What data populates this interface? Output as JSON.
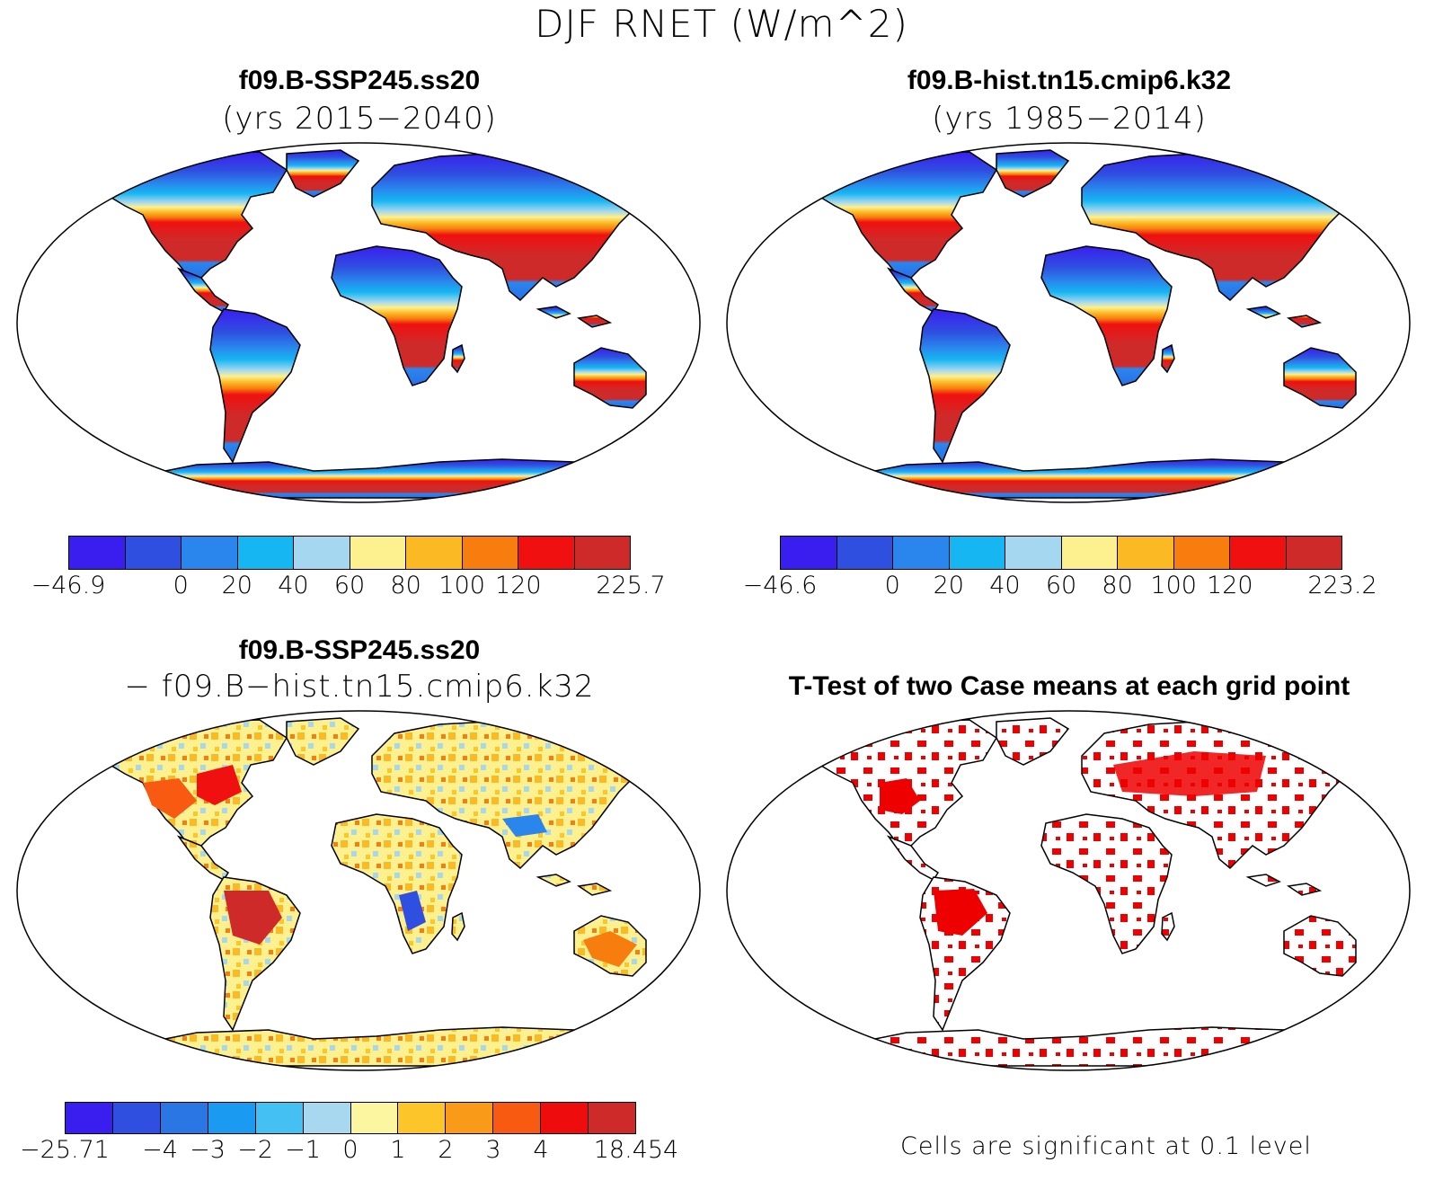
{
  "figure": {
    "title": "DJF RNET (W/m^2)"
  },
  "panels": {
    "top_left": {
      "title": "f09.B-SSP245.ss20",
      "subtitle": "(yrs 2015−2040)",
      "colorbar": {
        "colors": [
          "#3a1ef0",
          "#2f4fe0",
          "#2a86ec",
          "#16b6f2",
          "#a5d8f0",
          "#fdf08e",
          "#fbb923",
          "#f77d0e",
          "#f01010",
          "#cf2a2a"
        ],
        "labels": [
          "−46.9",
          "0",
          "20",
          "40",
          "60",
          "80",
          "100",
          "120",
          "225.7"
        ],
        "edges": [
          0,
          2,
          3,
          4,
          5,
          6,
          7,
          8,
          10
        ]
      }
    },
    "top_right": {
      "title": "f09.B-hist.tn15.cmip6.k32",
      "subtitle": "(yrs 1985−2014)",
      "colorbar": {
        "colors": [
          "#3a1ef0",
          "#2f4fe0",
          "#2a86ec",
          "#16b6f2",
          "#a5d8f0",
          "#fdf08e",
          "#fbb923",
          "#f77d0e",
          "#f01010",
          "#cf2a2a"
        ],
        "labels": [
          "−46.6",
          "0",
          "20",
          "40",
          "60",
          "80",
          "100",
          "120",
          "223.2"
        ],
        "edges": [
          0,
          2,
          3,
          4,
          5,
          6,
          7,
          8,
          10
        ]
      }
    },
    "bottom_left": {
      "title": "f09.B-SSP245.ss20",
      "subtitle": "− f09.B−hist.tn15.cmip6.k32",
      "colorbar": {
        "colors": [
          "#3a1ef0",
          "#2f4fe0",
          "#2a76e4",
          "#1a9af0",
          "#44c0f2",
          "#a8d8f0",
          "#fdf6a0",
          "#fcc52a",
          "#f99a18",
          "#f75a10",
          "#ef0c0c",
          "#cf2a2a"
        ],
        "labels": [
          "−25.71",
          "−4",
          "−3",
          "−2",
          "−1",
          "0",
          "1",
          "2",
          "3",
          "4",
          "18.454"
        ],
        "edges": [
          0,
          2,
          3,
          4,
          5,
          6,
          7,
          8,
          9,
          10,
          12
        ]
      }
    },
    "bottom_right": {
      "title": "T-Test of two Case means at each grid point",
      "note": "Cells are significant at 0.1 level",
      "significant_color": "#ee0000"
    }
  }
}
